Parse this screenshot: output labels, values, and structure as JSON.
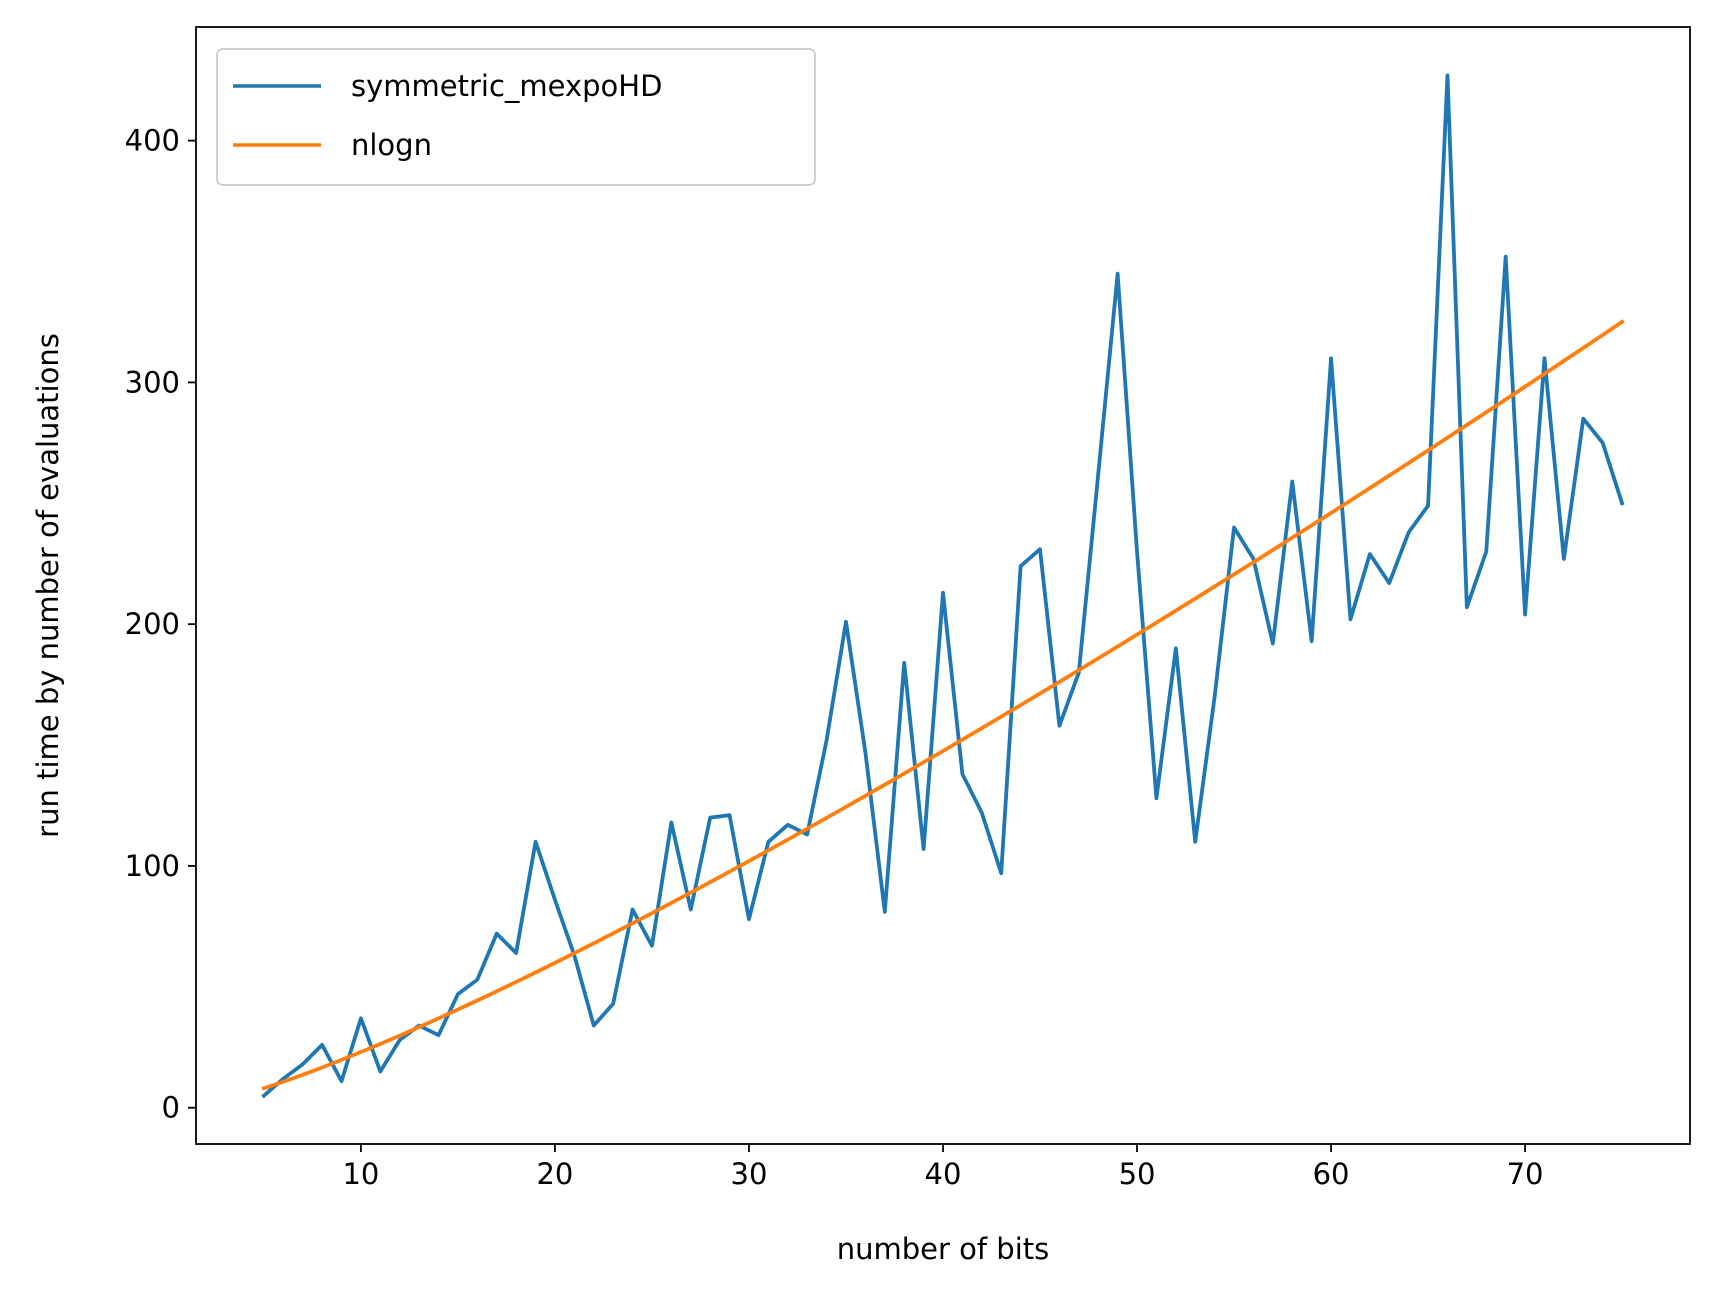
{
  "chart_data": {
    "type": "line",
    "title": "",
    "xlabel": "number of bits",
    "ylabel": "run time by number of evaluations",
    "xlim": [
      1.5,
      78.5
    ],
    "ylim": [
      -15,
      447
    ],
    "xticks": [
      10,
      20,
      30,
      40,
      50,
      60,
      70
    ],
    "yticks": [
      0,
      100,
      200,
      300,
      400
    ],
    "grid": false,
    "legend_position": "top-left",
    "series": [
      {
        "name": "symmetric_mexpoHD",
        "color": "#1f77b4",
        "x": [
          5,
          6,
          7,
          8,
          9,
          10,
          11,
          12,
          13,
          14,
          15,
          16,
          17,
          18,
          19,
          20,
          21,
          22,
          23,
          24,
          25,
          26,
          27,
          28,
          29,
          30,
          31,
          32,
          33,
          34,
          35,
          36,
          37,
          38,
          39,
          40,
          41,
          42,
          43,
          44,
          45,
          46,
          47,
          48,
          49,
          50,
          51,
          52,
          53,
          54,
          55,
          56,
          57,
          58,
          59,
          60,
          61,
          62,
          63,
          64,
          65,
          66,
          67,
          68,
          69,
          70,
          71,
          72,
          73,
          74,
          75
        ],
        "y": [
          5,
          12,
          18,
          26,
          11,
          37,
          15,
          28,
          34,
          30,
          47,
          53,
          72,
          64,
          110,
          86,
          63,
          34,
          43,
          82,
          67,
          118,
          82,
          120,
          121,
          78,
          110,
          117,
          113,
          152,
          201,
          147,
          81,
          184,
          107,
          213,
          138,
          122,
          97,
          224,
          231,
          158,
          180,
          262,
          345,
          230,
          128,
          190,
          110,
          170,
          240,
          227,
          192,
          259,
          193,
          310,
          202,
          229,
          217,
          238,
          249,
          427,
          207,
          230,
          352,
          204,
          310,
          227,
          285,
          275,
          250
        ]
      },
      {
        "name": "nlogn",
        "color": "#ff7f0e",
        "x": [
          5,
          6,
          7,
          8,
          9,
          10,
          11,
          12,
          13,
          14,
          15,
          16,
          17,
          18,
          19,
          20,
          21,
          22,
          23,
          24,
          25,
          26,
          27,
          28,
          29,
          30,
          31,
          32,
          33,
          34,
          35,
          36,
          37,
          38,
          39,
          40,
          41,
          42,
          43,
          44,
          45,
          46,
          47,
          48,
          49,
          50,
          51,
          52,
          53,
          54,
          55,
          56,
          57,
          58,
          59,
          60,
          61,
          62,
          63,
          64,
          65,
          66,
          67,
          68,
          69,
          70,
          71,
          72,
          73,
          74,
          75
        ],
        "y": [
          8.05,
          10.75,
          13.62,
          16.64,
          19.78,
          23.03,
          26.38,
          29.82,
          33.34,
          36.95,
          40.62,
          44.36,
          48.16,
          52.03,
          55.94,
          59.91,
          63.94,
          68.0,
          72.12,
          76.27,
          80.47,
          84.71,
          88.99,
          93.3,
          97.65,
          102.04,
          106.45,
          110.9,
          115.38,
          119.9,
          124.44,
          129.01,
          133.61,
          138.23,
          142.88,
          147.56,
          152.27,
          157.0,
          161.75,
          166.53,
          171.33,
          176.16,
          181.01,
          185.88,
          190.77,
          195.69,
          200.63,
          205.59,
          210.57,
          215.57,
          220.59,
          225.63,
          230.7,
          235.78,
          240.88,
          246.0,
          251.14,
          256.31,
          261.49,
          266.68,
          271.9,
          277.13,
          282.38,
          287.65,
          292.94,
          298.25,
          303.57,
          308.91,
          314.27,
          319.64,
          325.03
        ]
      }
    ]
  }
}
